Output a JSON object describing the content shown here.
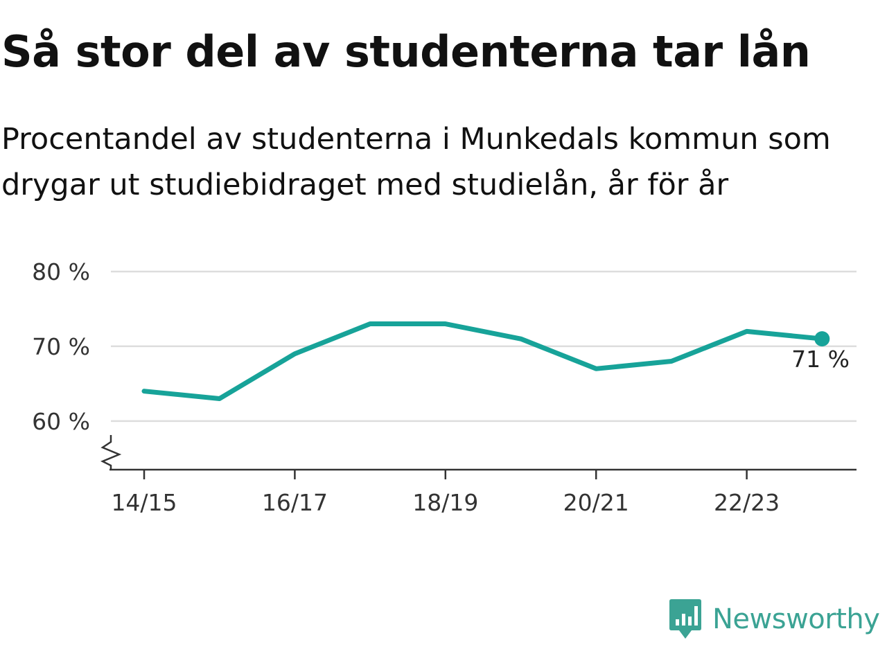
{
  "title": "Så stor del av studenterna tar lån",
  "subtitle": "Procentandel av studenterna i Munkedals kommun som drygar ut studiebidraget med studielån, år för år",
  "brand": "Newsworthy",
  "colors": {
    "line": "#17a399",
    "grid": "#dddddd",
    "axis": "#333333",
    "brand": "#3ba394"
  },
  "chart_data": {
    "type": "line",
    "x": [
      "14/15",
      "15/16",
      "16/17",
      "17/18",
      "18/19",
      "19/20",
      "20/21",
      "21/22",
      "22/23",
      "23/24"
    ],
    "x_tick_labels": [
      "14/15",
      "16/17",
      "18/19",
      "20/21",
      "22/23"
    ],
    "series": [
      {
        "values": [
          64,
          63,
          69,
          73,
          73,
          71,
          67,
          68,
          72,
          71
        ]
      }
    ],
    "y_ticks": [
      60,
      70,
      80
    ],
    "y_tick_labels": [
      "60 %",
      "70 %",
      "80 %"
    ],
    "ylim": [
      53.5,
      80
    ],
    "y_axis_break": true,
    "grid": "horizontal",
    "end_label": "71 %",
    "title": "Så stor del av studenterna tar lån",
    "xlabel": "",
    "ylabel": ""
  }
}
